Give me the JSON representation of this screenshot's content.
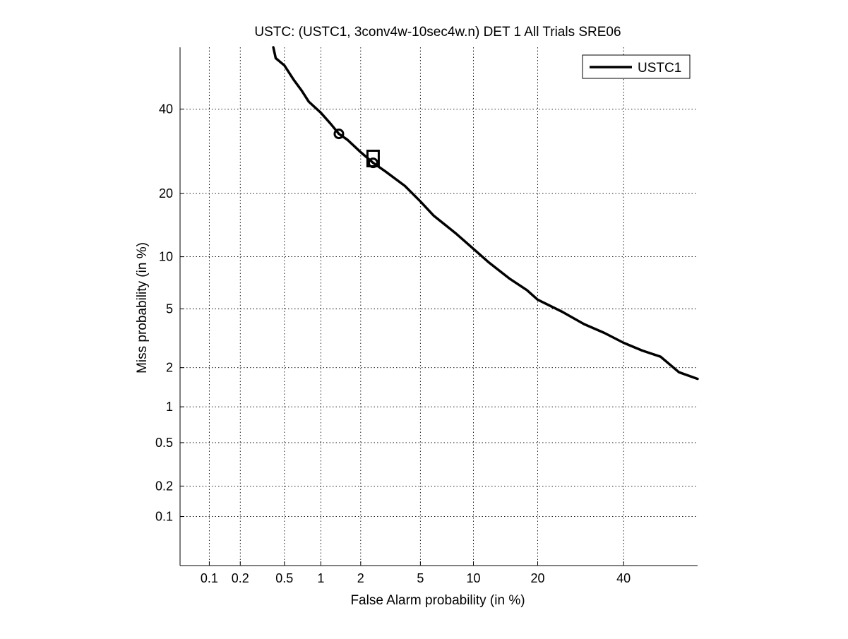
{
  "chart_data": {
    "type": "line",
    "title": "USTC: (USTC1, 3conv4w-10sec4w.n) DET 1 All Trials SRE06",
    "xlabel": "False Alarm probability (in %)",
    "ylabel": "Miss probability (in %)",
    "scale": "normal-deviate (probit)",
    "xlim": [
      0.05,
      60
    ],
    "ylim": [
      0.03,
      57
    ],
    "x_ticks": [
      {
        "value": 0.1,
        "label": "0.1"
      },
      {
        "value": 0.2,
        "label": "0.2"
      },
      {
        "value": 0.5,
        "label": "0.5"
      },
      {
        "value": 1,
        "label": "1"
      },
      {
        "value": 2,
        "label": "2"
      },
      {
        "value": 5,
        "label": "5"
      },
      {
        "value": 10,
        "label": "10"
      },
      {
        "value": 20,
        "label": "20"
      },
      {
        "value": 40,
        "label": "40"
      }
    ],
    "y_ticks": [
      {
        "value": 0.1,
        "label": "0.1"
      },
      {
        "value": 0.2,
        "label": "0.2"
      },
      {
        "value": 0.5,
        "label": "0.5"
      },
      {
        "value": 1,
        "label": "1"
      },
      {
        "value": 2,
        "label": "2"
      },
      {
        "value": 5,
        "label": "5"
      },
      {
        "value": 10,
        "label": "10"
      },
      {
        "value": 20,
        "label": "20"
      },
      {
        "value": 40,
        "label": "40"
      }
    ],
    "grid": true,
    "legend_position": "top-right",
    "series": [
      {
        "name": "USTC1",
        "color": "#000000",
        "x": [
          0.4,
          0.42,
          0.5,
          0.6,
          0.7,
          0.8,
          1.0,
          1.2,
          1.38,
          1.6,
          2.0,
          2.45,
          3.0,
          4.0,
          5.0,
          6.0,
          8.0,
          10.0,
          12.0,
          15.0,
          18.0,
          20.0,
          25.0,
          30.0,
          35.0,
          40.0,
          45.0,
          50.0,
          55.0,
          60.0
        ],
        "y": [
          57,
          54,
          52,
          48,
          45,
          42,
          39,
          36,
          33.5,
          32,
          29,
          26.5,
          24.5,
          21.5,
          18.5,
          16,
          13.2,
          11,
          9.3,
          7.6,
          6.5,
          5.7,
          4.8,
          4.0,
          3.5,
          3.0,
          2.65,
          2.4,
          1.85,
          1.65
        ]
      }
    ],
    "markers": [
      {
        "shape": "circle",
        "x": 1.38,
        "y": 33.5
      },
      {
        "shape": "circle",
        "x": 2.45,
        "y": 26.5
      },
      {
        "shape": "square",
        "x": 2.45,
        "y": 27.5
      }
    ]
  }
}
